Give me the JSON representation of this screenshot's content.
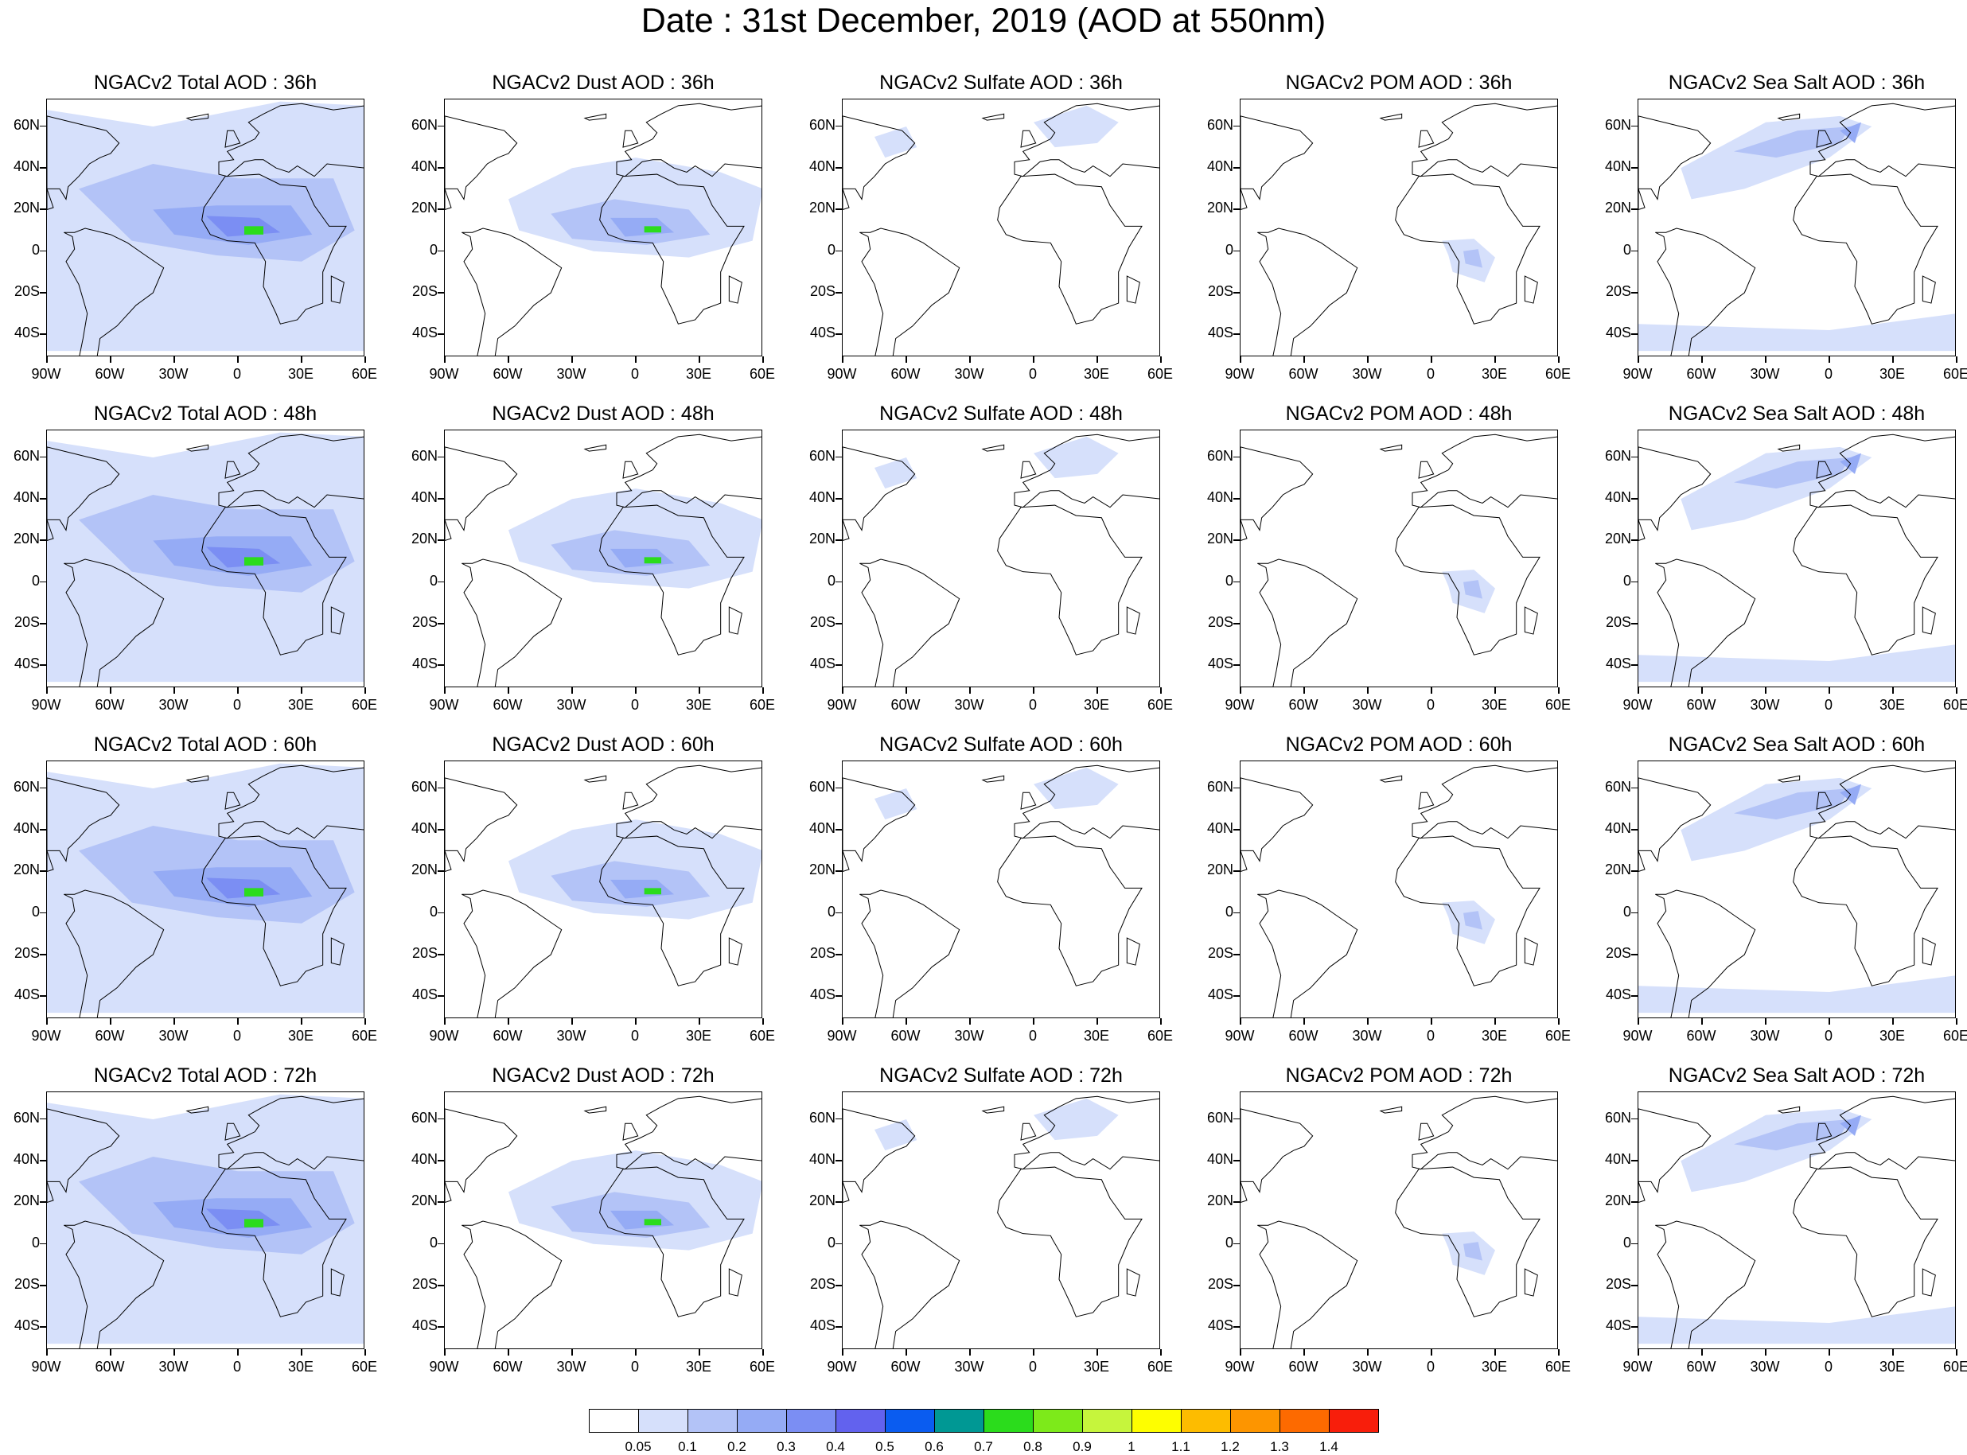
{
  "title": "Date : 31st December, 2019 (AOD at 550nm)",
  "rows": [
    "36h",
    "48h",
    "60h",
    "72h"
  ],
  "panels": [
    [
      "NGACv2 Total AOD : 36h",
      "NGACv2 Dust AOD : 36h",
      "NGACv2 Sulfate AOD : 36h",
      "NGACv2 POM AOD : 36h",
      "NGACv2 Sea Salt AOD : 36h"
    ],
    [
      "NGACv2 Total AOD : 48h",
      "NGACv2 Dust AOD : 48h",
      "NGACv2 Sulfate AOD : 48h",
      "NGACv2 POM AOD : 48h",
      "NGACv2 Sea Salt AOD : 48h"
    ],
    [
      "NGACv2 Total AOD : 60h",
      "NGACv2 Dust AOD : 60h",
      "NGACv2 Sulfate AOD : 60h",
      "NGACv2 POM AOD : 60h",
      "NGACv2 Sea Salt AOD : 60h"
    ],
    [
      "NGACv2 Total AOD : 72h",
      "NGACv2 Dust AOD : 72h",
      "NGACv2 Sulfate AOD : 72h",
      "NGACv2 POM AOD : 72h",
      "NGACv2 Sea Salt  AOD : 72h"
    ]
  ],
  "lat_labels": [
    "60N",
    "40N",
    "20N",
    "0",
    "20S",
    "40S"
  ],
  "lon_labels": [
    "90W",
    "60W",
    "30W",
    "0",
    "30E",
    "60E"
  ],
  "colorbar": {
    "labels": [
      "0.05",
      "0.1",
      "0.2",
      "0.3",
      "0.4",
      "0.5",
      "0.6",
      "0.7",
      "0.8",
      "0.9",
      "1",
      "1.1",
      "1.2",
      "1.3",
      "1.4"
    ],
    "colors": [
      "#ffffff",
      "#d6e0fb",
      "#b3c3f7",
      "#95abf5",
      "#7b8ef3",
      "#6262ee",
      "#0a5cf0",
      "#009894",
      "#2bdc1c",
      "#7dea1a",
      "#c6f53c",
      "#fefe00",
      "#fdbc00",
      "#fd9500",
      "#fd6a00",
      "#f81e0b"
    ]
  }
}
